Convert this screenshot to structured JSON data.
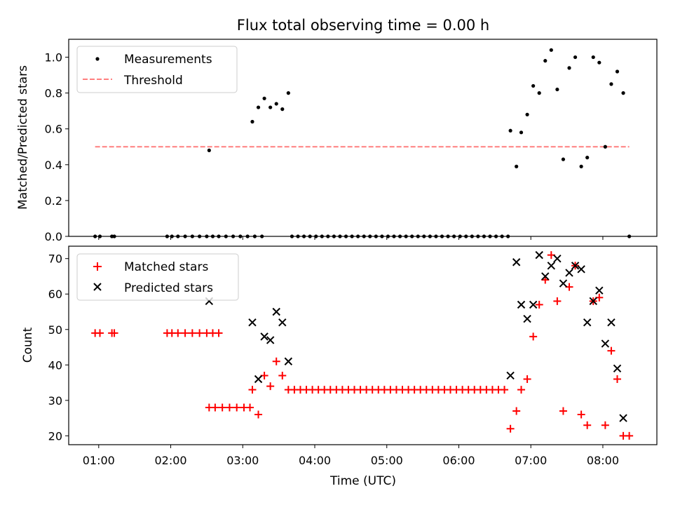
{
  "chart_data": [
    {
      "type": "scatter",
      "title": "Flux total observing time = 0.00 h",
      "xlabel": "",
      "ylabel": "Matched/Predicted stars",
      "ylim": [
        0,
        1.1
      ],
      "yticks": [
        "0.0",
        "0.2",
        "0.4",
        "0.6",
        "0.8",
        "1.0"
      ],
      "yticks_values": [
        0,
        0.2,
        0.4,
        0.6,
        0.8,
        1.0
      ],
      "legend_position": "upper-left",
      "series": [
        {
          "name": "Measurements",
          "marker": "dot",
          "color": "#000000",
          "points": [
            [
              "00:57",
              0
            ],
            [
              "01:01",
              0
            ],
            [
              "01:11",
              0
            ],
            [
              "01:13",
              0
            ],
            [
              "01:57",
              0
            ],
            [
              "02:01",
              0
            ],
            [
              "02:06",
              0
            ],
            [
              "02:12",
              0
            ],
            [
              "02:18",
              0
            ],
            [
              "02:24",
              0
            ],
            [
              "02:30",
              0
            ],
            [
              "02:35",
              0
            ],
            [
              "02:40",
              0
            ],
            [
              "02:32",
              0.48
            ],
            [
              "02:46",
              0
            ],
            [
              "02:52",
              0
            ],
            [
              "02:58",
              0
            ],
            [
              "03:04",
              0
            ],
            [
              "03:10",
              0
            ],
            [
              "03:16",
              0
            ],
            [
              "03:08",
              0.64
            ],
            [
              "03:13",
              0.72
            ],
            [
              "03:18",
              0.77
            ],
            [
              "03:23",
              0.72
            ],
            [
              "03:28",
              0.74
            ],
            [
              "03:33",
              0.71
            ],
            [
              "03:38",
              0.8
            ],
            [
              "03:41",
              0
            ],
            [
              "03:46",
              0
            ],
            [
              "03:51",
              0
            ],
            [
              "03:56",
              0
            ],
            [
              "04:01",
              0
            ],
            [
              "04:06",
              0
            ],
            [
              "04:11",
              0
            ],
            [
              "04:16",
              0
            ],
            [
              "04:21",
              0
            ],
            [
              "04:26",
              0
            ],
            [
              "04:31",
              0
            ],
            [
              "04:36",
              0
            ],
            [
              "04:41",
              0
            ],
            [
              "04:46",
              0
            ],
            [
              "04:51",
              0
            ],
            [
              "04:56",
              0
            ],
            [
              "05:01",
              0
            ],
            [
              "05:06",
              0
            ],
            [
              "05:11",
              0
            ],
            [
              "05:16",
              0
            ],
            [
              "05:21",
              0
            ],
            [
              "05:26",
              0
            ],
            [
              "05:31",
              0
            ],
            [
              "05:36",
              0
            ],
            [
              "05:41",
              0
            ],
            [
              "05:46",
              0
            ],
            [
              "05:51",
              0
            ],
            [
              "05:56",
              0
            ],
            [
              "06:01",
              0
            ],
            [
              "06:06",
              0
            ],
            [
              "06:11",
              0
            ],
            [
              "06:16",
              0
            ],
            [
              "06:21",
              0
            ],
            [
              "06:26",
              0
            ],
            [
              "06:31",
              0
            ],
            [
              "06:36",
              0
            ],
            [
              "06:41",
              0
            ],
            [
              "06:43",
              0.59
            ],
            [
              "06:48",
              0.39
            ],
            [
              "06:52",
              0.58
            ],
            [
              "06:57",
              0.68
            ],
            [
              "07:02",
              0.84
            ],
            [
              "07:07",
              0.8
            ],
            [
              "07:12",
              0.98
            ],
            [
              "07:17",
              1.04
            ],
            [
              "07:22",
              0.82
            ],
            [
              "07:27",
              0.43
            ],
            [
              "07:32",
              0.94
            ],
            [
              "07:37",
              1.0
            ],
            [
              "07:42",
              0.39
            ],
            [
              "07:47",
              0.44
            ],
            [
              "07:52",
              1.0
            ],
            [
              "07:57",
              0.97
            ],
            [
              "08:02",
              0.5
            ],
            [
              "08:07",
              0.85
            ],
            [
              "08:12",
              0.92
            ],
            [
              "08:17",
              0.8
            ],
            [
              "08:22",
              0
            ]
          ]
        },
        {
          "name": "Threshold",
          "style": "dashed-line",
          "color": "#ff7f7f",
          "points": [
            [
              "00:57",
              0.5
            ],
            [
              "08:22",
              0.5
            ]
          ]
        }
      ]
    },
    {
      "type": "scatter",
      "title": "",
      "xlabel": "Time (UTC)",
      "ylabel": "Count",
      "ylim": [
        17.5,
        73.5
      ],
      "xlim": [
        "00:35",
        "08:45"
      ],
      "xticks": [
        "01:00",
        "02:00",
        "03:00",
        "04:00",
        "05:00",
        "06:00",
        "07:00",
        "08:00"
      ],
      "yticks": [
        "20",
        "30",
        "40",
        "50",
        "60",
        "70"
      ],
      "yticks_values": [
        20,
        30,
        40,
        50,
        60,
        70
      ],
      "legend_position": "upper-left",
      "series": [
        {
          "name": "Matched stars",
          "marker": "plus",
          "color": "#ff0000",
          "points": [
            [
              "00:57",
              49
            ],
            [
              "01:01",
              49
            ],
            [
              "01:11",
              49
            ],
            [
              "01:13",
              49
            ],
            [
              "01:57",
              49
            ],
            [
              "02:01",
              49
            ],
            [
              "02:06",
              49
            ],
            [
              "02:12",
              49
            ],
            [
              "02:18",
              49
            ],
            [
              "02:24",
              49
            ],
            [
              "02:30",
              49
            ],
            [
              "02:35",
              49
            ],
            [
              "02:40",
              49
            ],
            [
              "02:32",
              28
            ],
            [
              "02:37",
              28
            ],
            [
              "02:43",
              28
            ],
            [
              "02:49",
              28
            ],
            [
              "02:55",
              28
            ],
            [
              "03:01",
              28
            ],
            [
              "03:06",
              28
            ],
            [
              "03:08",
              33
            ],
            [
              "03:13",
              26
            ],
            [
              "03:18",
              37
            ],
            [
              "03:23",
              34
            ],
            [
              "03:28",
              41
            ],
            [
              "03:33",
              37
            ],
            [
              "03:38",
              33
            ],
            [
              "03:43",
              33
            ],
            [
              "03:48",
              33
            ],
            [
              "03:53",
              33
            ],
            [
              "03:58",
              33
            ],
            [
              "04:03",
              33
            ],
            [
              "04:08",
              33
            ],
            [
              "04:13",
              33
            ],
            [
              "04:18",
              33
            ],
            [
              "04:23",
              33
            ],
            [
              "04:28",
              33
            ],
            [
              "04:33",
              33
            ],
            [
              "04:38",
              33
            ],
            [
              "04:43",
              33
            ],
            [
              "04:48",
              33
            ],
            [
              "04:53",
              33
            ],
            [
              "04:58",
              33
            ],
            [
              "05:03",
              33
            ],
            [
              "05:08",
              33
            ],
            [
              "05:13",
              33
            ],
            [
              "05:18",
              33
            ],
            [
              "05:23",
              33
            ],
            [
              "05:28",
              33
            ],
            [
              "05:33",
              33
            ],
            [
              "05:38",
              33
            ],
            [
              "05:43",
              33
            ],
            [
              "05:48",
              33
            ],
            [
              "05:53",
              33
            ],
            [
              "05:58",
              33
            ],
            [
              "06:03",
              33
            ],
            [
              "06:08",
              33
            ],
            [
              "06:13",
              33
            ],
            [
              "06:18",
              33
            ],
            [
              "06:23",
              33
            ],
            [
              "06:28",
              33
            ],
            [
              "06:33",
              33
            ],
            [
              "06:38",
              33
            ],
            [
              "06:43",
              22
            ],
            [
              "06:48",
              27
            ],
            [
              "06:52",
              33
            ],
            [
              "06:57",
              36
            ],
            [
              "07:02",
              48
            ],
            [
              "07:07",
              57
            ],
            [
              "07:12",
              64
            ],
            [
              "07:17",
              71
            ],
            [
              "07:22",
              58
            ],
            [
              "07:27",
              27
            ],
            [
              "07:32",
              62
            ],
            [
              "07:37",
              68
            ],
            [
              "07:42",
              26
            ],
            [
              "07:47",
              23
            ],
            [
              "07:52",
              58
            ],
            [
              "07:57",
              59
            ],
            [
              "08:02",
              23
            ],
            [
              "08:07",
              44
            ],
            [
              "08:12",
              36
            ],
            [
              "08:17",
              20
            ],
            [
              "08:22",
              20
            ]
          ]
        },
        {
          "name": "Predicted stars",
          "marker": "x",
          "color": "#000000",
          "points": [
            [
              "02:32",
              58
            ],
            [
              "03:08",
              52
            ],
            [
              "03:13",
              36
            ],
            [
              "03:18",
              48
            ],
            [
              "03:23",
              47
            ],
            [
              "03:28",
              55
            ],
            [
              "03:33",
              52
            ],
            [
              "03:38",
              41
            ],
            [
              "06:43",
              37
            ],
            [
              "06:48",
              69
            ],
            [
              "06:52",
              57
            ],
            [
              "06:57",
              53
            ],
            [
              "07:02",
              57
            ],
            [
              "07:07",
              71
            ],
            [
              "07:12",
              65
            ],
            [
              "07:17",
              68
            ],
            [
              "07:22",
              70
            ],
            [
              "07:27",
              63
            ],
            [
              "07:32",
              66
            ],
            [
              "07:37",
              68
            ],
            [
              "07:42",
              67
            ],
            [
              "07:47",
              52
            ],
            [
              "07:52",
              58
            ],
            [
              "07:57",
              61
            ],
            [
              "08:02",
              46
            ],
            [
              "08:07",
              52
            ],
            [
              "08:12",
              39
            ],
            [
              "08:17",
              25
            ]
          ]
        }
      ]
    }
  ]
}
